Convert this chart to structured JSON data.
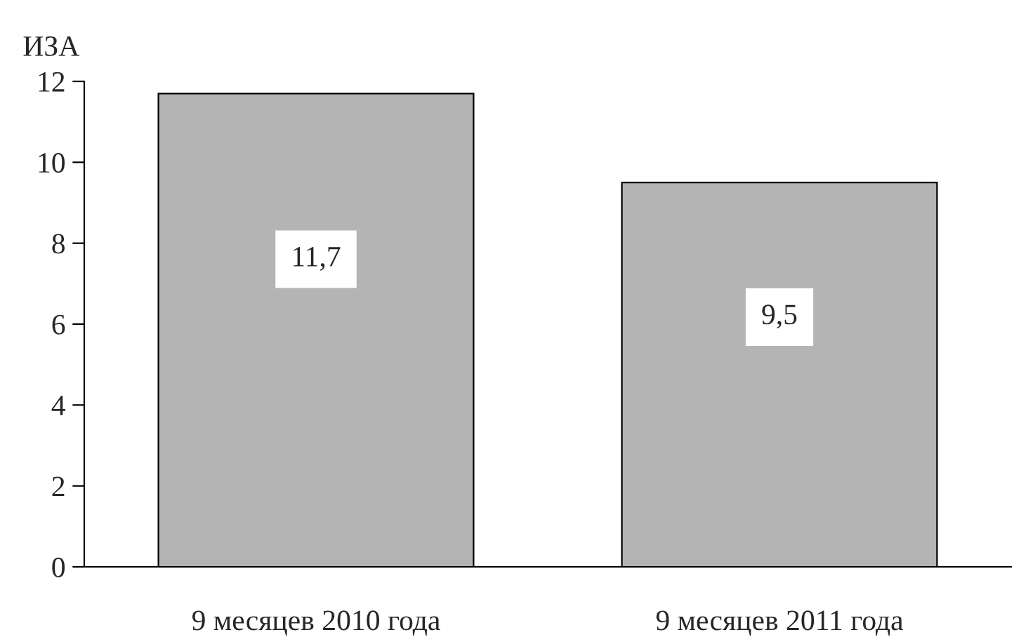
{
  "chart_data": {
    "type": "bar",
    "ylabel": "ИЗА",
    "categories": [
      "9 месяцев 2010 года",
      "9 месяцев 2011 года"
    ],
    "values": [
      11.7,
      9.5
    ],
    "value_labels": [
      "11,7",
      "9,5"
    ],
    "color": "#b4b4b4",
    "ylim": [
      0,
      12
    ],
    "yticks": [
      0,
      2,
      4,
      6,
      8,
      10,
      12
    ],
    "grid": false,
    "legend": false
  }
}
